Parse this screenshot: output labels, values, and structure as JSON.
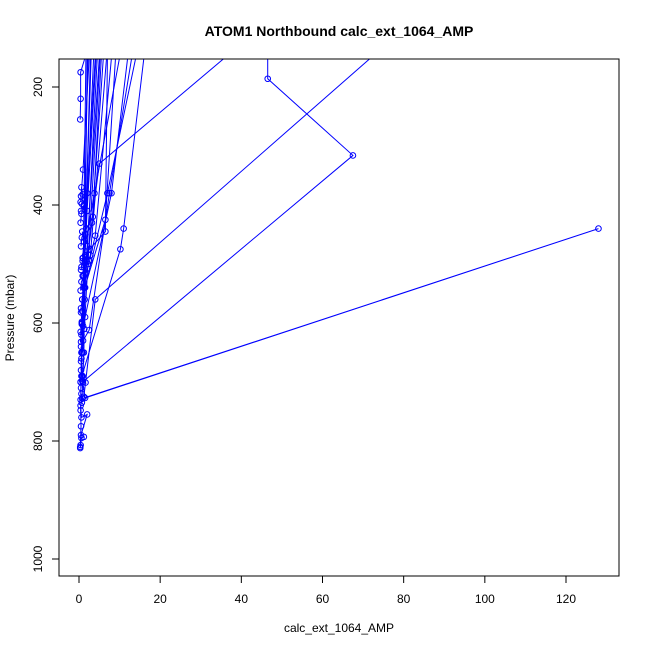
{
  "chart_data": {
    "type": "line",
    "title": "ATOM1 Northbound calc_ext_1064_AMP",
    "xlabel": "calc_ext_1064_AMP",
    "ylabel": "Pressure (mbar)",
    "xlim": [
      0,
      130
    ],
    "ylim": [
      1020,
      160
    ],
    "y_reversed": true,
    "grid": false,
    "x_ticks": [
      0,
      20,
      40,
      60,
      80,
      100,
      120
    ],
    "y_ticks": [
      200,
      400,
      600,
      800,
      1000
    ],
    "series_color": "#0000ff",
    "marker": "open-circle",
    "series": [
      {
        "points": [
          [
            0.3,
            812
          ],
          [
            0.4,
            807
          ],
          [
            0.6,
            795
          ],
          [
            1.2,
            793
          ],
          [
            0.5,
            790
          ],
          [
            2.0,
            755
          ],
          [
            0.6,
            760
          ],
          [
            0.4,
            740
          ],
          [
            0.8,
            728
          ],
          [
            128,
            440
          ],
          [
            1.5,
            727
          ],
          [
            0.9,
            700
          ],
          [
            67.5,
            316
          ],
          [
            46.5,
            186
          ],
          [
            46.5,
            150
          ]
        ]
      },
      {
        "points": [
          [
            0.4,
            700
          ],
          [
            0.8,
            698
          ],
          [
            1.6,
            701
          ],
          [
            0.7,
            690
          ],
          [
            10.2,
            475
          ],
          [
            11.0,
            440
          ],
          [
            16,
            150
          ]
        ]
      },
      {
        "points": [
          [
            0.5,
            665
          ],
          [
            0.8,
            650
          ],
          [
            1.0,
            630
          ],
          [
            2.5,
            612
          ],
          [
            7.5,
            380
          ],
          [
            13,
            150
          ]
        ]
      },
      {
        "points": [
          [
            0.6,
            620
          ],
          [
            0.7,
            602
          ],
          [
            1.0,
            605
          ],
          [
            1.5,
            590
          ],
          [
            8.0,
            380
          ],
          [
            12,
            150
          ]
        ]
      },
      {
        "points": [
          [
            0.5,
            575
          ],
          [
            0.8,
            560
          ],
          [
            1.4,
            540
          ],
          [
            6.5,
            425
          ],
          [
            9,
            150
          ]
        ]
      },
      {
        "points": [
          [
            0.4,
            545
          ],
          [
            0.6,
            530
          ],
          [
            1.8,
            515
          ],
          [
            2.6,
            495
          ],
          [
            4.0,
            452
          ],
          [
            8,
            150
          ]
        ]
      },
      {
        "points": [
          [
            0.5,
            510
          ],
          [
            0.9,
            495
          ],
          [
            1.5,
            485
          ],
          [
            2.6,
            475
          ],
          [
            6.5,
            445
          ],
          [
            7,
            150
          ]
        ]
      },
      {
        "points": [
          [
            0.5,
            470
          ],
          [
            0.7,
            455
          ],
          [
            1.8,
            440
          ],
          [
            3.4,
            420
          ],
          [
            5.5,
            150
          ]
        ]
      },
      {
        "points": [
          [
            0.4,
            430
          ],
          [
            0.6,
            415
          ],
          [
            1.2,
            400
          ],
          [
            2.0,
            380
          ],
          [
            4.0,
            150
          ]
        ]
      },
      {
        "points": [
          [
            0.4,
            395
          ],
          [
            0.5,
            385
          ],
          [
            1.0,
            340
          ],
          [
            2.5,
            150
          ]
        ]
      },
      {
        "points": [
          [
            0.3,
            255
          ],
          [
            0.4,
            220
          ],
          [
            0.4,
            175
          ],
          [
            1.5,
            150
          ]
        ]
      },
      {
        "points": [
          [
            0.4,
            730
          ],
          [
            0.8,
            600
          ],
          [
            3.0,
            150
          ]
        ]
      },
      {
        "points": [
          [
            0.5,
            680
          ],
          [
            1.2,
            520
          ],
          [
            3.6,
            150
          ]
        ]
      },
      {
        "points": [
          [
            0.6,
            650
          ],
          [
            1.4,
            560
          ],
          [
            4.5,
            150
          ]
        ]
      },
      {
        "points": [
          [
            0.7,
            600
          ],
          [
            2.0,
            470
          ],
          [
            5.0,
            150
          ]
        ]
      },
      {
        "points": [
          [
            0.8,
            560
          ],
          [
            3.2,
            430
          ],
          [
            6.0,
            150
          ]
        ]
      },
      {
        "points": [
          [
            0.9,
            520
          ],
          [
            2.8,
            485
          ],
          [
            6.8,
            150
          ]
        ]
      },
      {
        "points": [
          [
            1.0,
            490
          ],
          [
            3.8,
            380
          ],
          [
            10,
            150
          ]
        ]
      },
      {
        "points": [
          [
            1.5,
            540
          ],
          [
            7.0,
            380
          ],
          [
            14,
            150
          ]
        ]
      },
      {
        "points": [
          [
            1.1,
            540
          ],
          [
            5.0,
            330
          ],
          [
            36,
            150
          ]
        ]
      },
      {
        "points": [
          [
            1.2,
            725
          ],
          [
            4.0,
            560
          ],
          [
            72,
            150
          ]
        ]
      },
      {
        "points": [
          [
            0.7,
            735
          ],
          [
            1.2,
            650
          ],
          [
            2.0,
            150
          ]
        ]
      },
      {
        "points": [
          [
            0.5,
            710
          ],
          [
            0.9,
            580
          ],
          [
            1.7,
            150
          ]
        ]
      },
      {
        "points": [
          [
            0.6,
            690
          ],
          [
            1.0,
            520
          ],
          [
            2.2,
            150
          ]
        ]
      },
      {
        "points": [
          [
            0.9,
            650
          ],
          [
            1.6,
            450
          ],
          [
            2.8,
            150
          ]
        ]
      },
      {
        "points": [
          [
            1.3,
            610
          ],
          [
            2.2,
            500
          ],
          [
            5.2,
            150
          ]
        ]
      },
      {
        "points": [
          [
            0.8,
            580
          ],
          [
            2.0,
            410
          ],
          [
            4.2,
            150
          ]
        ]
      },
      {
        "points": [
          [
            0.3,
            810
          ],
          [
            0.5,
            775
          ],
          [
            0.4,
            748
          ],
          [
            0.6,
            720
          ]
        ]
      },
      {
        "points": [
          [
            0.4,
            700
          ],
          [
            0.9,
            690
          ],
          [
            0.6,
            660
          ],
          [
            0.5,
            640
          ]
        ]
      },
      {
        "points": [
          [
            0.5,
            632
          ],
          [
            0.4,
            615
          ],
          [
            0.7,
            598
          ],
          [
            0.5,
            582
          ]
        ]
      },
      {
        "points": [
          [
            0.6,
            505
          ],
          [
            0.9,
            490
          ],
          [
            1.2,
            462
          ],
          [
            0.8,
            445
          ]
        ]
      },
      {
        "points": [
          [
            0.5,
            410
          ],
          [
            0.7,
            398
          ],
          [
            0.9,
            382
          ],
          [
            0.6,
            370
          ]
        ]
      }
    ]
  }
}
